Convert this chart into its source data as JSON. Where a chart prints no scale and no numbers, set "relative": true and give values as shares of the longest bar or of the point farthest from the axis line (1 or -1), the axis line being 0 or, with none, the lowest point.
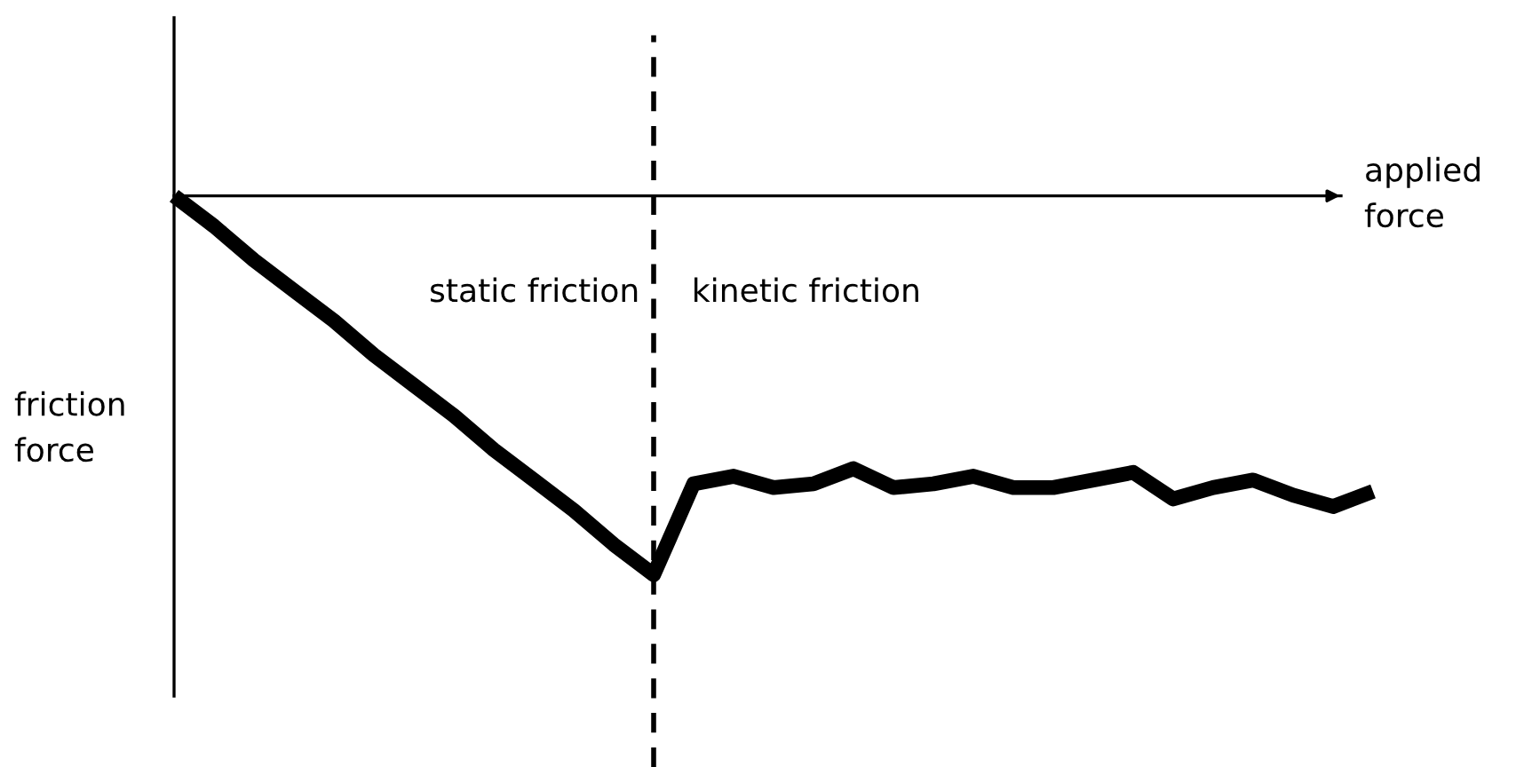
{
  "chart_data": {
    "type": "line",
    "relative": true,
    "xlabel": "applied\nforce",
    "ylabel": "friction\nforce",
    "categories": [
      null,
      null,
      null,
      null,
      null,
      null,
      null,
      null,
      null,
      null,
      null,
      null,
      null,
      null,
      null,
      null,
      null,
      null,
      null,
      null,
      null,
      null,
      null,
      null,
      null,
      null,
      null,
      null,
      null,
      null,
      null
    ],
    "series": [
      {
        "color": "#000000",
        "values": [
          0,
          -0.08,
          -0.17,
          -0.25,
          -0.33,
          -0.42,
          -0.5,
          -0.58,
          -0.67,
          -0.75,
          -0.83,
          -0.92,
          -1,
          -0.76,
          -0.74,
          -0.77,
          -0.76,
          -0.72,
          -0.77,
          -0.76,
          -0.74,
          -0.77,
          -0.77,
          -0.75,
          -0.73,
          -0.8,
          -0.77,
          -0.75,
          -0.79,
          -0.82,
          -0.78
        ]
      }
    ],
    "annotations": [
      "static friction",
      "kinetic friction"
    ],
    "legend": false,
    "marker": "none",
    "line_style": "solid"
  }
}
